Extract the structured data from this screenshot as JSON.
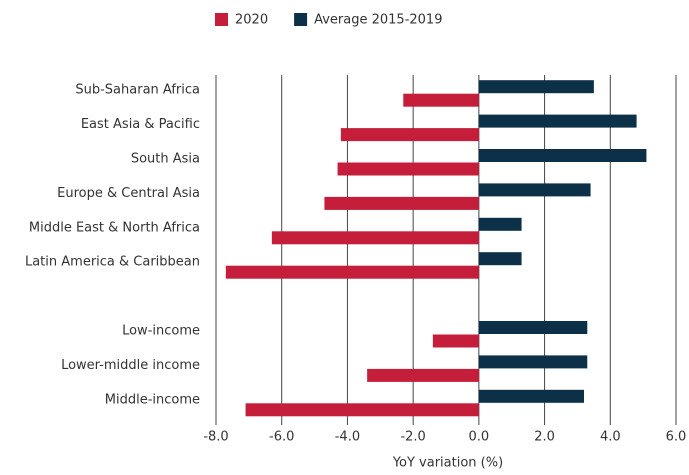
{
  "chart_data": {
    "type": "hbar",
    "xlabel": "YoY variation (%)",
    "categories": [
      "Sub-Saharan Africa",
      "East Asia & Pacific",
      "South Asia",
      "Europe & Central Asia",
      "Middle East & North Africa",
      "Latin America & Caribbean",
      null,
      "Low-income",
      "Lower-middle income",
      "Middle-income"
    ],
    "series": [
      {
        "name": "2020",
        "color": "#c41e3a",
        "values": [
          -2.3,
          -4.2,
          -4.3,
          -4.7,
          -6.3,
          -7.7,
          null,
          -1.4,
          -3.4,
          -7.1
        ]
      },
      {
        "name": "Average 2015-2019",
        "color": "#0d3049",
        "values": [
          3.5,
          4.8,
          5.1,
          3.4,
          1.3,
          1.3,
          null,
          3.3,
          3.3,
          3.2
        ]
      }
    ],
    "xlim": [
      -8,
      6
    ],
    "xticks": [
      {
        "value": -8,
        "label": "-8.0"
      },
      {
        "value": -6,
        "label": "-6.0"
      },
      {
        "value": -4,
        "label": "-4.0"
      },
      {
        "value": -2,
        "label": "-2.0"
      },
      {
        "value": 0,
        "label": "0.0"
      },
      {
        "value": 2,
        "label": "2.0"
      },
      {
        "value": 4,
        "label": "4.0"
      },
      {
        "value": 6,
        "label": "6.0"
      }
    ],
    "grid": true
  }
}
